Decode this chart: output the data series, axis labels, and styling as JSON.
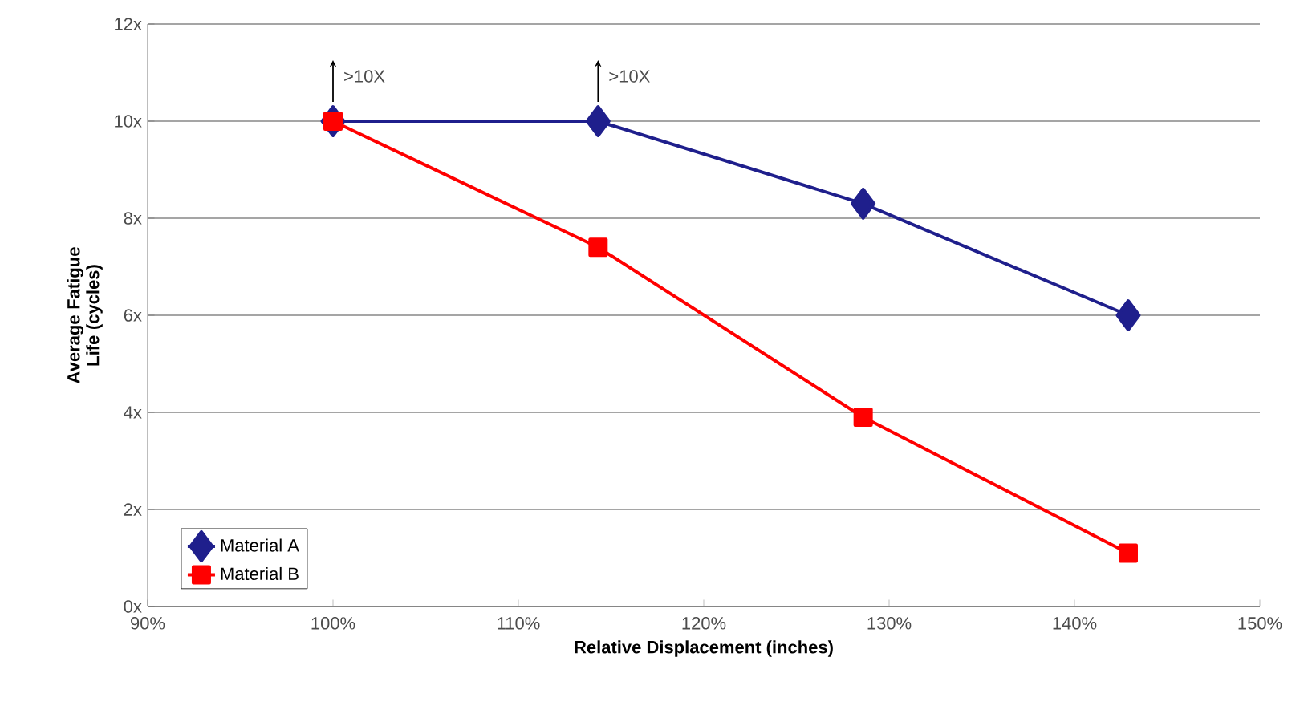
{
  "chart_data": {
    "type": "line",
    "xlabel": "Relative Displacement (inches)",
    "ylabel": "Average Fatigue Life (cycles)",
    "xlim": [
      90,
      150
    ],
    "xticks": [
      {
        "value": 90,
        "label": "90%"
      },
      {
        "value": 100,
        "label": "100%"
      },
      {
        "value": 110,
        "label": "110%"
      },
      {
        "value": 120,
        "label": "120%"
      },
      {
        "value": 130,
        "label": "130%"
      },
      {
        "value": 140,
        "label": "140%"
      },
      {
        "value": 150,
        "label": "150%"
      }
    ],
    "ylim": [
      0,
      12
    ],
    "yticks": [
      {
        "value": 0,
        "label": "0x"
      },
      {
        "value": 2,
        "label": "2x"
      },
      {
        "value": 4,
        "label": "4x"
      },
      {
        "value": 6,
        "label": "6x"
      },
      {
        "value": 8,
        "label": "8x"
      },
      {
        "value": 10,
        "label": "10x"
      },
      {
        "value": 12,
        "label": "12x"
      }
    ],
    "x": [
      100,
      114.3,
      128.6,
      142.9
    ],
    "series": [
      {
        "name": "Material A",
        "color": "#1f1f8c",
        "marker": "diamond",
        "values": [
          10,
          10,
          8.3,
          6
        ]
      },
      {
        "name": "Material B",
        "color": "#ff0000",
        "marker": "square",
        "values": [
          10,
          7.4,
          3.9,
          1.1
        ]
      }
    ],
    "annotations": [
      {
        "text": ">10X",
        "x": 100,
        "y": 10
      },
      {
        "text": ">10X",
        "x": 114.3,
        "y": 10
      }
    ],
    "grid": "y",
    "legend": "bottom left",
    "line_style": "solid"
  }
}
